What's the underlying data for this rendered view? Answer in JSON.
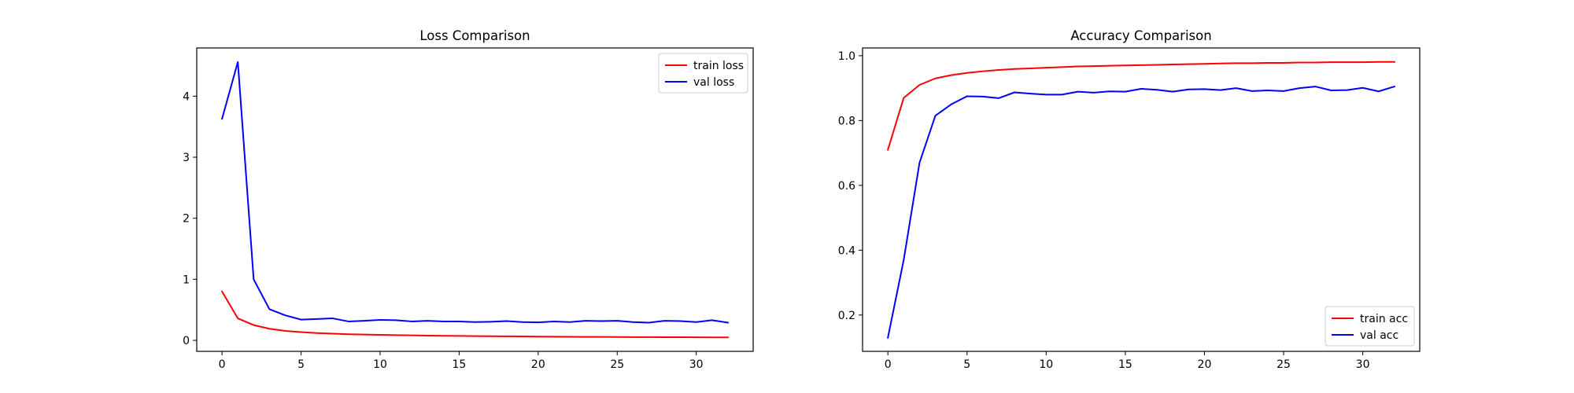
{
  "chart_data": [
    {
      "type": "line",
      "title": "Loss Comparison",
      "xlabel": "",
      "ylabel": "",
      "xlim": [
        -1.6,
        33.6
      ],
      "ylim": [
        -0.18,
        4.79
      ],
      "xticks": [
        0,
        5,
        10,
        15,
        20,
        25,
        30
      ],
      "yticks": [
        0,
        1,
        2,
        3,
        4
      ],
      "legend_position": "top-right",
      "x": [
        0,
        1,
        2,
        3,
        4,
        5,
        6,
        7,
        8,
        9,
        10,
        11,
        12,
        13,
        14,
        15,
        16,
        17,
        18,
        19,
        20,
        21,
        22,
        23,
        24,
        25,
        26,
        27,
        28,
        29,
        30,
        31,
        32
      ],
      "series": [
        {
          "name": "train loss",
          "color": "#ff0000",
          "values": [
            0.8,
            0.36,
            0.25,
            0.19,
            0.155,
            0.135,
            0.12,
            0.11,
            0.1,
            0.095,
            0.09,
            0.085,
            0.082,
            0.078,
            0.075,
            0.072,
            0.07,
            0.068,
            0.066,
            0.064,
            0.062,
            0.06,
            0.058,
            0.057,
            0.056,
            0.055,
            0.054,
            0.053,
            0.052,
            0.051,
            0.05,
            0.049,
            0.048
          ]
        },
        {
          "name": "val loss",
          "color": "#0000ff",
          "values": [
            3.63,
            4.56,
            1.0,
            0.51,
            0.41,
            0.34,
            0.35,
            0.36,
            0.31,
            0.32,
            0.335,
            0.33,
            0.31,
            0.32,
            0.31,
            0.31,
            0.3,
            0.305,
            0.315,
            0.3,
            0.295,
            0.31,
            0.3,
            0.32,
            0.315,
            0.32,
            0.3,
            0.29,
            0.32,
            0.315,
            0.3,
            0.33,
            0.29
          ]
        }
      ]
    },
    {
      "type": "line",
      "title": "Accuracy Comparison",
      "xlabel": "",
      "ylabel": "",
      "xlim": [
        -1.6,
        33.6
      ],
      "ylim": [
        0.088,
        1.024
      ],
      "xticks": [
        0,
        5,
        10,
        15,
        20,
        25,
        30
      ],
      "yticks": [
        0.2,
        0.4,
        0.6,
        0.8,
        1.0
      ],
      "ytick_labels": [
        "0.2",
        "0.4",
        "0.6",
        "0.8",
        "1.0"
      ],
      "legend_position": "bottom-right",
      "x": [
        0,
        1,
        2,
        3,
        4,
        5,
        6,
        7,
        8,
        9,
        10,
        11,
        12,
        13,
        14,
        15,
        16,
        17,
        18,
        19,
        20,
        21,
        22,
        23,
        24,
        25,
        26,
        27,
        28,
        29,
        30,
        31,
        32
      ],
      "series": [
        {
          "name": "train acc",
          "color": "#ff0000",
          "values": [
            0.71,
            0.87,
            0.91,
            0.93,
            0.94,
            0.947,
            0.952,
            0.956,
            0.959,
            0.961,
            0.963,
            0.965,
            0.967,
            0.968,
            0.969,
            0.97,
            0.971,
            0.972,
            0.973,
            0.974,
            0.975,
            0.976,
            0.977,
            0.977,
            0.978,
            0.978,
            0.979,
            0.979,
            0.98,
            0.98,
            0.98,
            0.981,
            0.981
          ]
        },
        {
          "name": "val acc",
          "color": "#0000ff",
          "values": [
            0.13,
            0.37,
            0.67,
            0.815,
            0.85,
            0.875,
            0.874,
            0.869,
            0.887,
            0.883,
            0.88,
            0.88,
            0.889,
            0.886,
            0.89,
            0.889,
            0.898,
            0.895,
            0.889,
            0.896,
            0.897,
            0.894,
            0.9,
            0.891,
            0.893,
            0.891,
            0.9,
            0.905,
            0.893,
            0.894,
            0.901,
            0.89,
            0.905
          ]
        }
      ]
    }
  ]
}
